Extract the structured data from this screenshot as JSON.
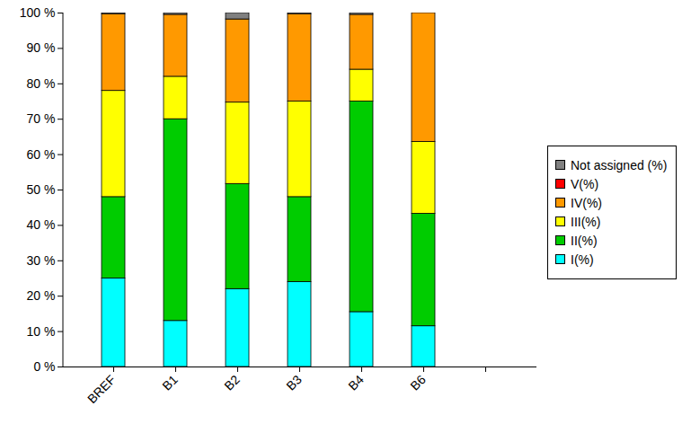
{
  "chart_data": {
    "type": "bar",
    "stacked": true,
    "legend": "right",
    "grid": false,
    "categories": [
      "BREF",
      "B1",
      "B2",
      "B3",
      "B4",
      "B6",
      null
    ],
    "ylim": [
      0,
      100
    ],
    "yticks": [
      {
        "value": 0,
        "label": "0 %"
      },
      {
        "value": 10,
        "label": "10 %"
      },
      {
        "value": 20,
        "label": "20 %"
      },
      {
        "value": 30,
        "label": "30 %"
      },
      {
        "value": 40,
        "label": "40 %"
      },
      {
        "value": 50,
        "label": "50 %"
      },
      {
        "value": 60,
        "label": "60 %"
      },
      {
        "value": 70,
        "label": "70 %"
      },
      {
        "value": 80,
        "label": "80 %"
      },
      {
        "value": 90,
        "label": "90 %"
      },
      {
        "value": 100,
        "label": "100 %"
      }
    ],
    "series": [
      {
        "name": "I(%)",
        "color": "#00ffff",
        "values": [
          25,
          13,
          22,
          24,
          15.5,
          11.5,
          null
        ]
      },
      {
        "name": "II(%)",
        "color": "#00cc00",
        "values": [
          23,
          57,
          29.7,
          24,
          59.5,
          31.8,
          null
        ]
      },
      {
        "name": "III(%)",
        "color": "#ffff00",
        "values": [
          30,
          12,
          23,
          27,
          9,
          20.3,
          null
        ]
      },
      {
        "name": "IV(%)",
        "color": "#ff9900",
        "values": [
          21.7,
          17.5,
          23.5,
          24.7,
          15.5,
          36.4,
          null
        ]
      },
      {
        "name": "V(%)",
        "color": "#ff0000",
        "values": [
          0,
          0,
          0,
          0,
          0,
          0,
          null
        ]
      },
      {
        "name": "Not assigned (%)",
        "color": "#808080",
        "values": [
          0.3,
          0.5,
          1.8,
          0.3,
          0.5,
          0,
          null
        ]
      }
    ]
  }
}
